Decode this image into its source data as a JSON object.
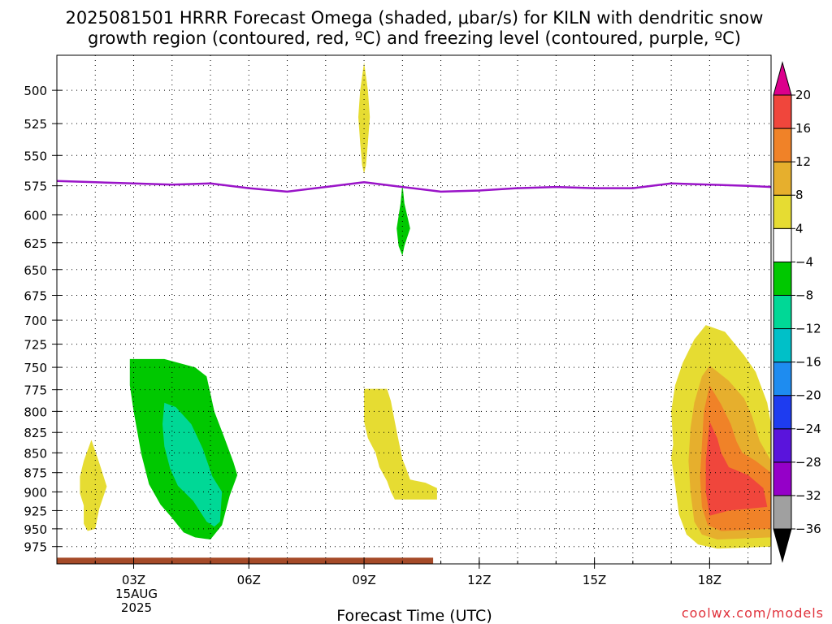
{
  "title_line1": "2025081501 HRRR Forecast Omega (shaded, μbar/s) for KILN with dendritic snow",
  "title_line2": "growth region (contoured, red, ºC) and freezing level (contoured, purple, ºC)",
  "xlabel": "Forecast Time (UTC)",
  "credit": "coolwx.com/models",
  "date_line1": "15AUG",
  "date_line2": "2025",
  "chart_data": {
    "type": "heatmap",
    "title": "2025081501 HRRR Forecast Omega (shaded, μbar/s) for KILN with dendritic snow growth region (contoured, red, ºC) and freezing level (contoured, purple, ºC)",
    "xlabel": "Forecast Time (UTC)",
    "ylabel": "",
    "x_unit": "hour UTC from 00Z 15AUG2025",
    "xlim": [
      1,
      19.6
    ],
    "x_ticks": [
      {
        "x": 3,
        "label": "03Z"
      },
      {
        "x": 6,
        "label": "06Z"
      },
      {
        "x": 9,
        "label": "09Z"
      },
      {
        "x": 12,
        "label": "12Z"
      },
      {
        "x": 15,
        "label": "15Z"
      },
      {
        "x": 18,
        "label": "18Z"
      }
    ],
    "y_ticks": [
      500,
      525,
      550,
      575,
      600,
      625,
      650,
      675,
      700,
      725,
      750,
      775,
      800,
      825,
      850,
      875,
      900,
      925,
      950,
      975
    ],
    "ylim": [
      475,
      1000
    ],
    "y_scale": "log-pressure",
    "grid": true,
    "colorbar": {
      "levels": [
        -36,
        -32,
        -28,
        -24,
        -20,
        -16,
        -12,
        -8,
        -4,
        4,
        8,
        12,
        16,
        20
      ],
      "colors": [
        "#000000",
        "#a0a0a0",
        "#9500c8",
        "#5a14dc",
        "#1e3cf0",
        "#1e8cf0",
        "#00c0c8",
        "#00d896",
        "#00c800",
        "#ffffff",
        "#e6dc32",
        "#e6af2d",
        "#f08228",
        "#f0463c",
        "#dc008c"
      ]
    },
    "freezing_level": {
      "color": "#9a14c8",
      "points": [
        [
          1,
          571
        ],
        [
          2,
          572
        ],
        [
          3,
          573
        ],
        [
          4,
          574
        ],
        [
          5,
          573
        ],
        [
          6,
          577
        ],
        [
          7,
          580
        ],
        [
          8,
          576
        ],
        [
          9,
          572
        ],
        [
          10,
          576
        ],
        [
          11,
          580
        ],
        [
          12,
          579
        ],
        [
          13,
          577
        ],
        [
          14,
          576
        ],
        [
          15,
          577
        ],
        [
          16,
          577
        ],
        [
          17,
          573
        ],
        [
          18,
          574
        ],
        [
          19,
          575
        ],
        [
          19.6,
          576
        ]
      ]
    },
    "omega_regions": [
      {
        "value_range": [
          4,
          8
        ],
        "color": "#e6dc32",
        "points": [
          [
            1.9,
            834
          ],
          [
            2.1,
            862
          ],
          [
            2.3,
            893
          ],
          [
            2.1,
            923
          ],
          [
            2.0,
            950
          ],
          [
            1.8,
            953
          ],
          [
            1.7,
            943
          ],
          [
            1.7,
            918
          ],
          [
            1.6,
            902
          ],
          [
            1.6,
            880
          ],
          [
            1.7,
            860
          ]
        ]
      },
      {
        "value_range": [
          4,
          8
        ],
        "color": "#e6dc32",
        "points": [
          [
            9.0,
            480
          ],
          [
            9.1,
            500
          ],
          [
            9.15,
            520
          ],
          [
            9.1,
            540
          ],
          [
            9.05,
            558
          ],
          [
            9.0,
            565
          ],
          [
            8.95,
            558
          ],
          [
            8.9,
            540
          ],
          [
            8.85,
            520
          ],
          [
            8.9,
            500
          ]
        ]
      },
      {
        "value_range": [
          -8,
          -4
        ],
        "color": "#00c800",
        "points": [
          [
            10.0,
            573
          ],
          [
            10.05,
            590
          ],
          [
            10.2,
            612
          ],
          [
            10.05,
            628
          ],
          [
            10.0,
            637
          ],
          [
            9.9,
            628
          ],
          [
            9.85,
            612
          ],
          [
            9.95,
            590
          ]
        ]
      },
      {
        "value_range": [
          4,
          8
        ],
        "color": "#e6dc32",
        "points": [
          [
            9.0,
            774
          ],
          [
            9.6,
            774
          ],
          [
            9.7,
            788
          ],
          [
            9.8,
            812
          ],
          [
            9.9,
            835
          ],
          [
            10.0,
            858
          ],
          [
            10.1,
            870
          ],
          [
            10.2,
            884
          ],
          [
            10.6,
            888
          ],
          [
            10.9,
            895
          ],
          [
            10.9,
            910
          ],
          [
            9.8,
            910
          ],
          [
            9.7,
            900
          ],
          [
            9.6,
            886
          ],
          [
            9.4,
            868
          ],
          [
            9.3,
            850
          ],
          [
            9.1,
            832
          ],
          [
            9.0,
            812
          ]
        ]
      },
      {
        "value_range": [
          -8,
          -4
        ],
        "color": "#00c800",
        "points": [
          [
            2.9,
            741
          ],
          [
            3.8,
            741
          ],
          [
            4.6,
            750
          ],
          [
            4.9,
            760
          ],
          [
            5.1,
            800
          ],
          [
            5.35,
            830
          ],
          [
            5.6,
            862
          ],
          [
            5.7,
            878
          ],
          [
            5.5,
            905
          ],
          [
            5.3,
            945
          ],
          [
            5.0,
            965
          ],
          [
            4.6,
            962
          ],
          [
            4.3,
            955
          ],
          [
            4.0,
            935
          ],
          [
            3.7,
            917
          ],
          [
            3.4,
            890
          ],
          [
            3.2,
            852
          ],
          [
            3.0,
            800
          ],
          [
            2.9,
            770
          ]
        ]
      },
      {
        "value_range": [
          -12,
          -8
        ],
        "color": "#00d896",
        "points": [
          [
            3.8,
            790
          ],
          [
            4.1,
            795
          ],
          [
            4.5,
            815
          ],
          [
            4.8,
            845
          ],
          [
            5.05,
            880
          ],
          [
            5.3,
            900
          ],
          [
            5.25,
            940
          ],
          [
            5.1,
            947
          ],
          [
            4.9,
            940
          ],
          [
            4.55,
            912
          ],
          [
            4.15,
            892
          ],
          [
            3.95,
            870
          ],
          [
            3.8,
            842
          ],
          [
            3.75,
            815
          ]
        ]
      },
      {
        "value_range": [
          4,
          8
        ],
        "color": "#e6dc32",
        "points": [
          [
            17.9,
            705
          ],
          [
            18.4,
            712
          ],
          [
            18.9,
            737
          ],
          [
            19.2,
            755
          ],
          [
            19.5,
            790
          ],
          [
            19.6,
            815
          ],
          [
            19.6,
            975
          ],
          [
            18.2,
            978
          ],
          [
            17.7,
            972
          ],
          [
            17.4,
            958
          ],
          [
            17.2,
            930
          ],
          [
            17.1,
            890
          ],
          [
            17.0,
            856
          ],
          [
            17.05,
            840
          ],
          [
            17.0,
            800
          ],
          [
            17.1,
            770
          ],
          [
            17.3,
            745
          ],
          [
            17.6,
            720
          ]
        ]
      },
      {
        "value_range": [
          8,
          12
        ],
        "color": "#e6af2d",
        "points": [
          [
            18.0,
            748
          ],
          [
            18.5,
            765
          ],
          [
            18.9,
            785
          ],
          [
            19.1,
            805
          ],
          [
            19.3,
            835
          ],
          [
            19.6,
            860
          ],
          [
            19.6,
            962
          ],
          [
            18.2,
            965
          ],
          [
            17.8,
            958
          ],
          [
            17.6,
            940
          ],
          [
            17.5,
            900
          ],
          [
            17.45,
            860
          ],
          [
            17.5,
            820
          ],
          [
            17.6,
            790
          ],
          [
            17.8,
            760
          ]
        ]
      },
      {
        "value_range": [
          12,
          16
        ],
        "color": "#f08228",
        "points": [
          [
            18.0,
            770
          ],
          [
            18.3,
            792
          ],
          [
            18.55,
            815
          ],
          [
            18.7,
            836
          ],
          [
            18.85,
            850
          ],
          [
            19.2,
            860
          ],
          [
            19.6,
            875
          ],
          [
            19.6,
            950
          ],
          [
            18.3,
            953
          ],
          [
            17.95,
            945
          ],
          [
            17.8,
            920
          ],
          [
            17.75,
            880
          ],
          [
            17.8,
            840
          ],
          [
            17.85,
            800
          ]
        ]
      },
      {
        "value_range": [
          16,
          20
        ],
        "color": "#f0463c",
        "points": [
          [
            18.0,
            812
          ],
          [
            18.2,
            832
          ],
          [
            18.3,
            850
          ],
          [
            18.5,
            868
          ],
          [
            19.0,
            878
          ],
          [
            19.4,
            895
          ],
          [
            19.5,
            920
          ],
          [
            18.5,
            925
          ],
          [
            18.0,
            932
          ],
          [
            17.9,
            900
          ],
          [
            17.9,
            860
          ],
          [
            17.95,
            835
          ]
        ]
      }
    ],
    "surface_band": {
      "color": "#a54a28",
      "points": [
        [
          1,
          991
        ],
        [
          10.8,
          991
        ],
        [
          10.8,
          1000
        ],
        [
          1,
          1000
        ]
      ]
    }
  }
}
